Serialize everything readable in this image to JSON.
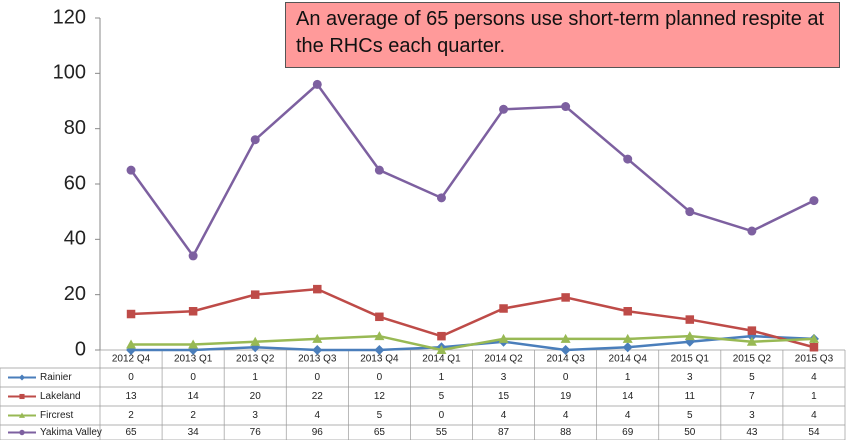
{
  "chart_data": {
    "type": "line",
    "annotation": "An average of 65 persons use short-term planned respite at the RHCs each quarter.",
    "categories": [
      "2012 Q4",
      "2013 Q1",
      "2013 Q2",
      "2013 Q3",
      "2013 Q4",
      "2014 Q1",
      "2014 Q2",
      "2014 Q3",
      "2014 Q4",
      "2015 Q1",
      "2015 Q2",
      "2015 Q3"
    ],
    "series": [
      {
        "name": "Rainier",
        "color": "#4a7ebb",
        "marker": "diamond",
        "values": [
          0,
          0,
          1,
          0,
          0,
          1,
          3,
          0,
          1,
          3,
          5,
          4
        ]
      },
      {
        "name": "Lakeland",
        "color": "#be4b48",
        "marker": "square",
        "values": [
          13,
          14,
          20,
          22,
          12,
          5,
          15,
          19,
          14,
          11,
          7,
          1
        ]
      },
      {
        "name": "Fircrest",
        "color": "#98b954",
        "marker": "triangle",
        "values": [
          2,
          2,
          3,
          4,
          5,
          0,
          4,
          4,
          4,
          5,
          3,
          4
        ]
      },
      {
        "name": "Yakima Valley",
        "color": "#7d60a0",
        "marker": "circle",
        "values": [
          65,
          34,
          76,
          96,
          65,
          55,
          87,
          88,
          69,
          50,
          43,
          54
        ]
      }
    ],
    "ylim": [
      0,
      120
    ],
    "yticks": [
      0,
      20,
      40,
      60,
      80,
      100,
      120
    ],
    "grid": false
  }
}
